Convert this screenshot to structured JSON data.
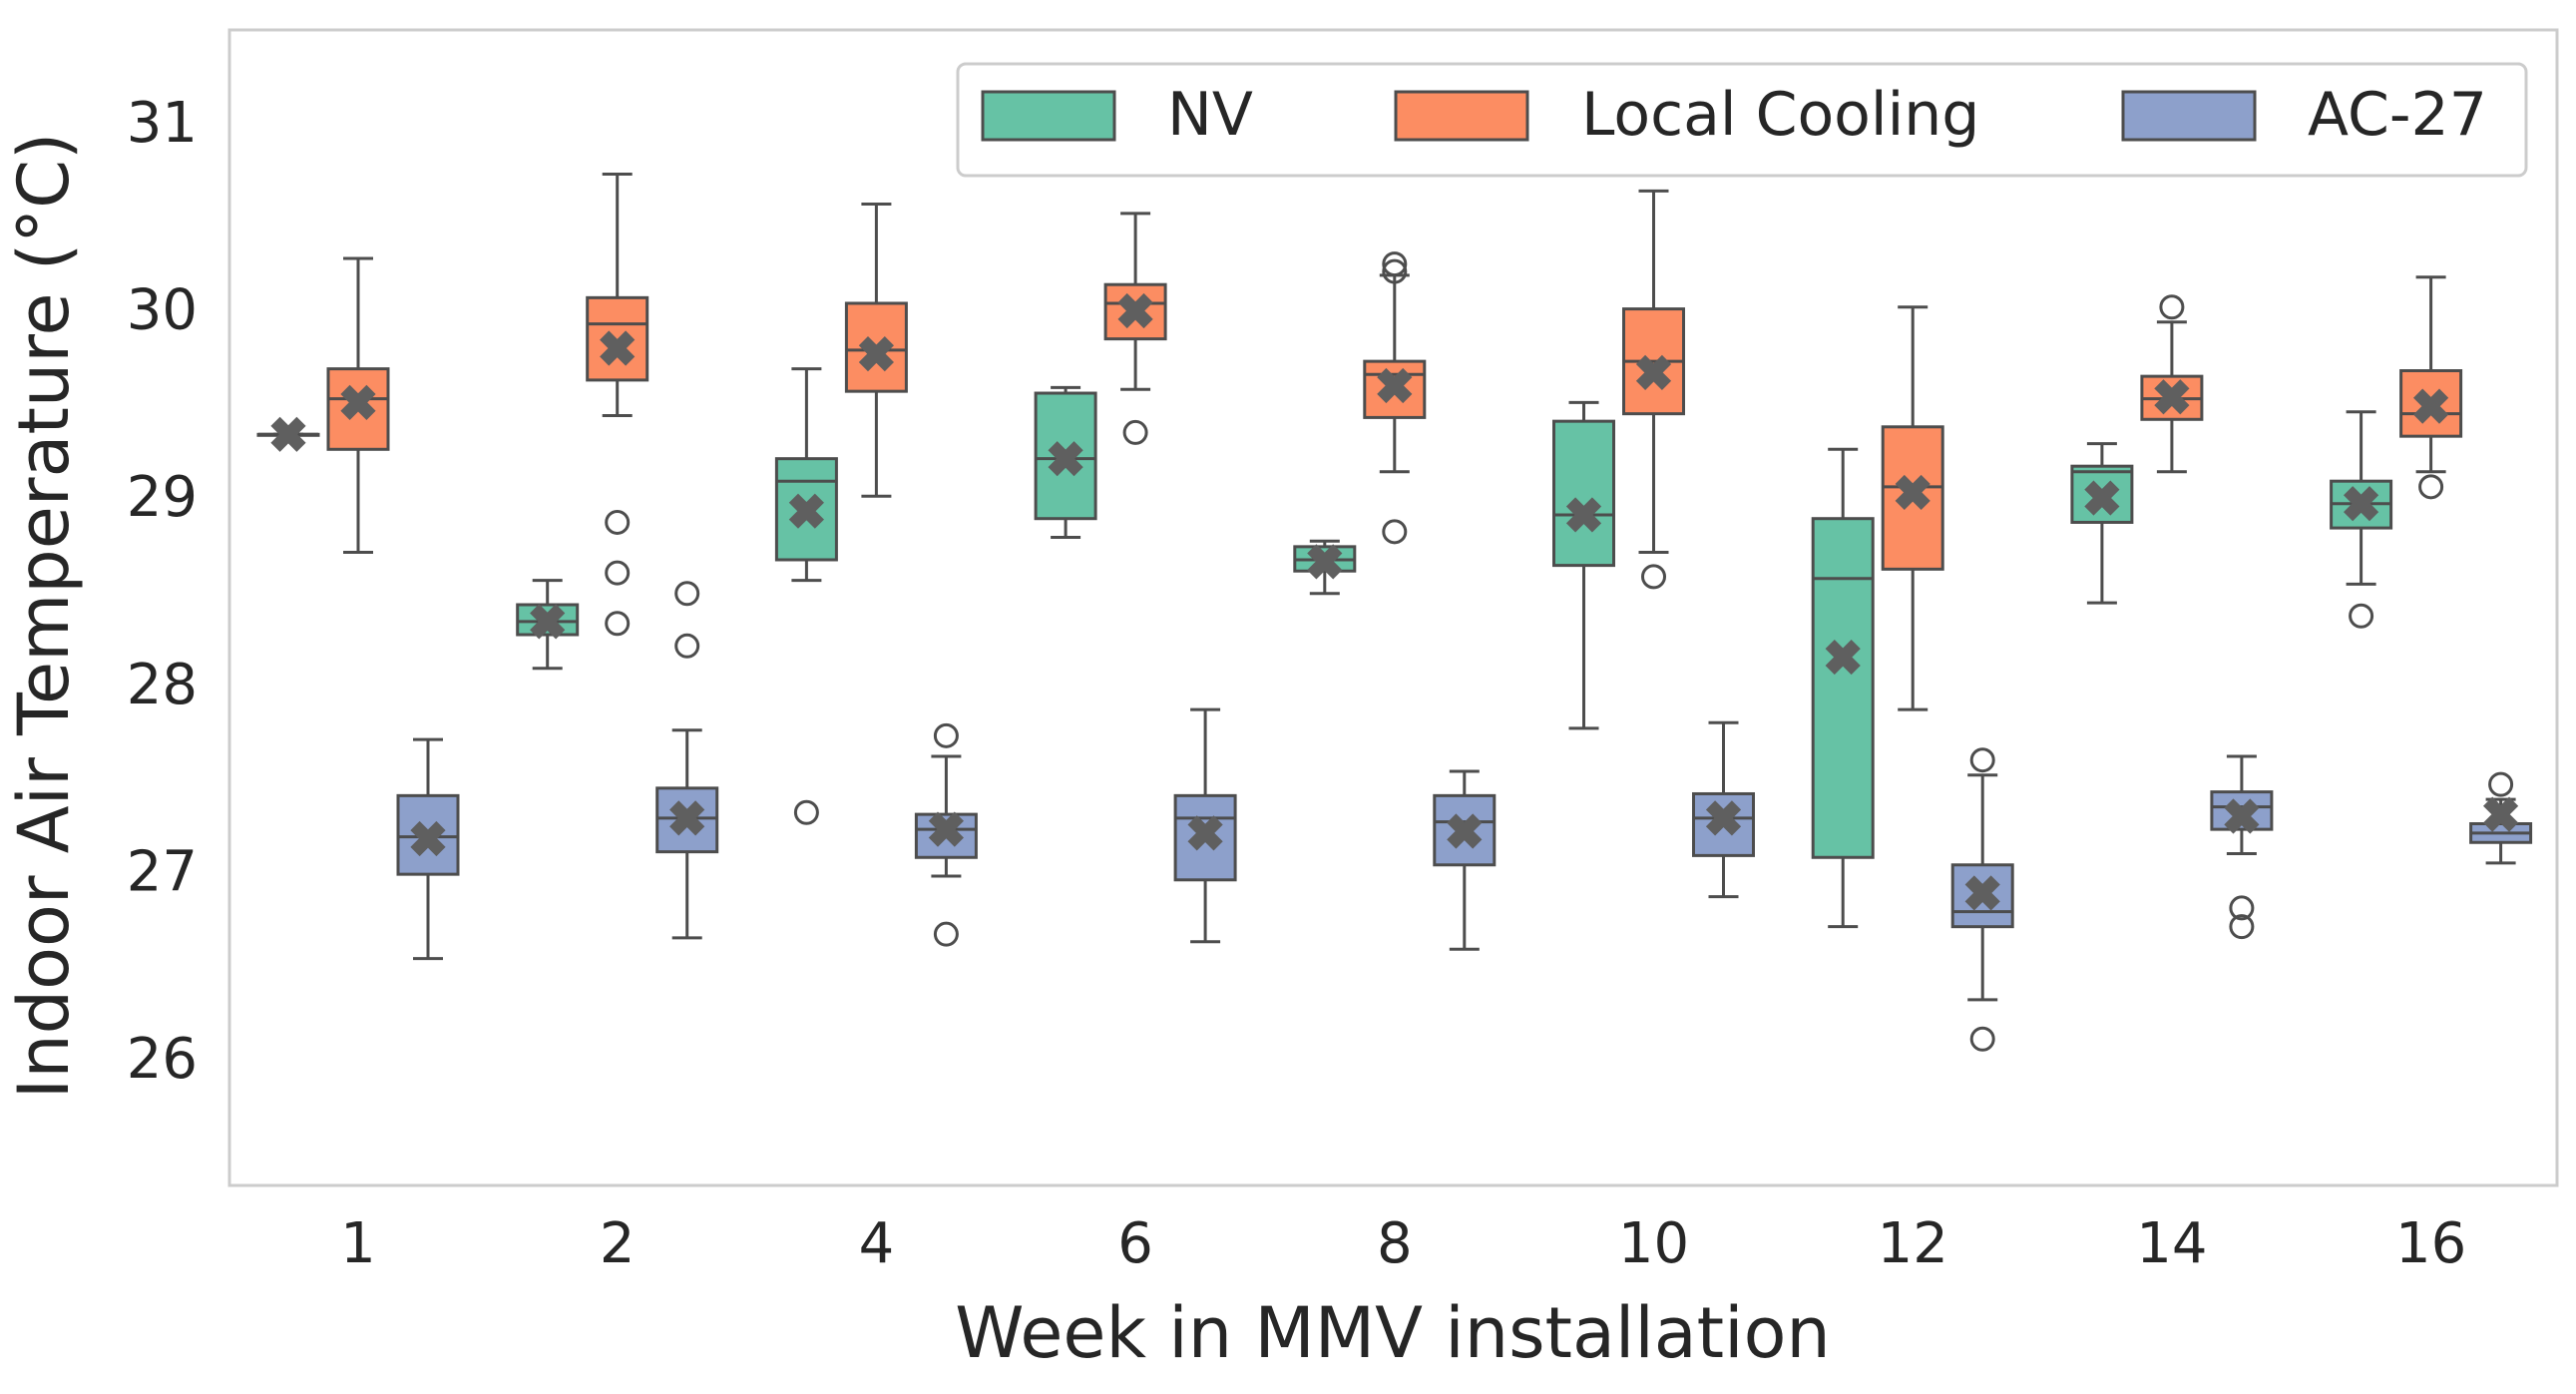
{
  "chart_data": {
    "type": "box",
    "title": "",
    "xlabel": "Week in MMV installation",
    "ylabel": "Indoor Air Temperature (°C)",
    "categories": [
      "1",
      "2",
      "4",
      "6",
      "8",
      "10",
      "12",
      "14",
      "16"
    ],
    "ylim": [
      25.3,
      31.5
    ],
    "yticks": [
      "26",
      "27",
      "28",
      "29",
      "30",
      "31"
    ],
    "grid": false,
    "legend_position": "top-right",
    "mean_marker": "X",
    "series": [
      {
        "name": "NV",
        "color": "#66c2a5",
        "boxes": [
          {
            "whislo": 29.33,
            "q1": 29.33,
            "med": 29.33,
            "q3": 29.33,
            "whishi": 29.33,
            "mean": 29.33,
            "fliers": []
          },
          {
            "whislo": 28.08,
            "q1": 28.26,
            "med": 28.33,
            "q3": 28.42,
            "whishi": 28.55,
            "mean": 28.33,
            "fliers": []
          },
          {
            "whislo": 28.55,
            "q1": 28.66,
            "med": 29.08,
            "q3": 29.2,
            "whishi": 29.68,
            "mean": 28.92,
            "fliers": [
              27.31
            ]
          },
          {
            "whislo": 28.78,
            "q1": 28.88,
            "med": 29.2,
            "q3": 29.55,
            "whishi": 29.58,
            "mean": 29.2,
            "fliers": []
          },
          {
            "whislo": 28.48,
            "q1": 28.6,
            "med": 28.66,
            "q3": 28.73,
            "whishi": 28.76,
            "mean": 28.65,
            "fliers": []
          },
          {
            "whislo": 27.76,
            "q1": 28.63,
            "med": 28.9,
            "q3": 29.4,
            "whishi": 29.5,
            "mean": 28.9,
            "fliers": []
          },
          {
            "whislo": 26.7,
            "q1": 27.07,
            "med": 28.56,
            "q3": 28.88,
            "whishi": 29.25,
            "mean": 28.14,
            "fliers": []
          },
          {
            "whislo": 28.43,
            "q1": 28.86,
            "med": 29.13,
            "q3": 29.16,
            "whishi": 29.28,
            "mean": 28.99,
            "fliers": []
          },
          {
            "whislo": 28.53,
            "q1": 28.83,
            "med": 28.96,
            "q3": 29.08,
            "whishi": 29.45,
            "mean": 28.96,
            "fliers": [
              28.36
            ]
          }
        ]
      },
      {
        "name": "Local Cooling",
        "color": "#fc8d62",
        "boxes": [
          {
            "whislo": 28.7,
            "q1": 29.25,
            "med": 29.52,
            "q3": 29.68,
            "whishi": 30.27,
            "mean": 29.5,
            "fliers": []
          },
          {
            "whislo": 29.43,
            "q1": 29.62,
            "med": 29.92,
            "q3": 30.06,
            "whishi": 30.72,
            "mean": 29.79,
            "fliers": [
              28.86,
              28.59,
              28.32
            ]
          },
          {
            "whislo": 29.0,
            "q1": 29.56,
            "med": 29.78,
            "q3": 30.03,
            "whishi": 30.56,
            "mean": 29.76,
            "fliers": []
          },
          {
            "whislo": 29.57,
            "q1": 29.84,
            "med": 30.03,
            "q3": 30.13,
            "whishi": 30.51,
            "mean": 29.99,
            "fliers": [
              29.34
            ]
          },
          {
            "whislo": 29.13,
            "q1": 29.42,
            "med": 29.65,
            "q3": 29.72,
            "whishi": 30.18,
            "mean": 29.59,
            "fliers": [
              30.24,
              30.2,
              28.81
            ]
          },
          {
            "whislo": 28.7,
            "q1": 29.44,
            "med": 29.72,
            "q3": 30.0,
            "whishi": 30.63,
            "mean": 29.66,
            "fliers": [
              28.57
            ]
          },
          {
            "whislo": 27.86,
            "q1": 28.61,
            "med": 29.05,
            "q3": 29.37,
            "whishi": 30.01,
            "mean": 29.02,
            "fliers": []
          },
          {
            "whislo": 29.13,
            "q1": 29.41,
            "med": 29.52,
            "q3": 29.64,
            "whishi": 29.93,
            "mean": 29.53,
            "fliers": [
              30.01
            ]
          },
          {
            "whislo": 29.13,
            "q1": 29.32,
            "med": 29.44,
            "q3": 29.67,
            "whishi": 30.17,
            "mean": 29.48,
            "fliers": [
              29.05
            ]
          }
        ]
      },
      {
        "name": "AC-27",
        "color": "#8da0cb",
        "boxes": [
          {
            "whislo": 26.53,
            "q1": 26.98,
            "med": 27.18,
            "q3": 27.4,
            "whishi": 27.7,
            "mean": 27.17,
            "fliers": []
          },
          {
            "whislo": 26.64,
            "q1": 27.1,
            "med": 27.28,
            "q3": 27.44,
            "whishi": 27.75,
            "mean": 27.28,
            "fliers": [
              28.48,
              28.2
            ]
          },
          {
            "whislo": 26.97,
            "q1": 27.07,
            "med": 27.22,
            "q3": 27.3,
            "whishi": 27.61,
            "mean": 27.22,
            "fliers": [
              27.72,
              26.66
            ]
          },
          {
            "whislo": 26.62,
            "q1": 26.95,
            "med": 27.28,
            "q3": 27.4,
            "whishi": 27.86,
            "mean": 27.2,
            "fliers": []
          },
          {
            "whislo": 26.58,
            "q1": 27.03,
            "med": 27.26,
            "q3": 27.4,
            "whishi": 27.53,
            "mean": 27.21,
            "fliers": []
          },
          {
            "whislo": 26.86,
            "q1": 27.08,
            "med": 27.28,
            "q3": 27.41,
            "whishi": 27.79,
            "mean": 27.28,
            "fliers": []
          },
          {
            "whislo": 26.31,
            "q1": 26.7,
            "med": 26.78,
            "q3": 27.03,
            "whishi": 27.51,
            "mean": 26.88,
            "fliers": [
              27.59,
              26.1
            ]
          },
          {
            "whislo": 27.09,
            "q1": 27.22,
            "med": 27.34,
            "q3": 27.42,
            "whishi": 27.61,
            "mean": 27.29,
            "fliers": [
              26.8,
              26.7
            ]
          },
          {
            "whislo": 27.04,
            "q1": 27.15,
            "med": 27.2,
            "q3": 27.25,
            "whishi": 27.38,
            "mean": 27.3,
            "fliers": [
              27.46
            ]
          }
        ]
      }
    ]
  }
}
